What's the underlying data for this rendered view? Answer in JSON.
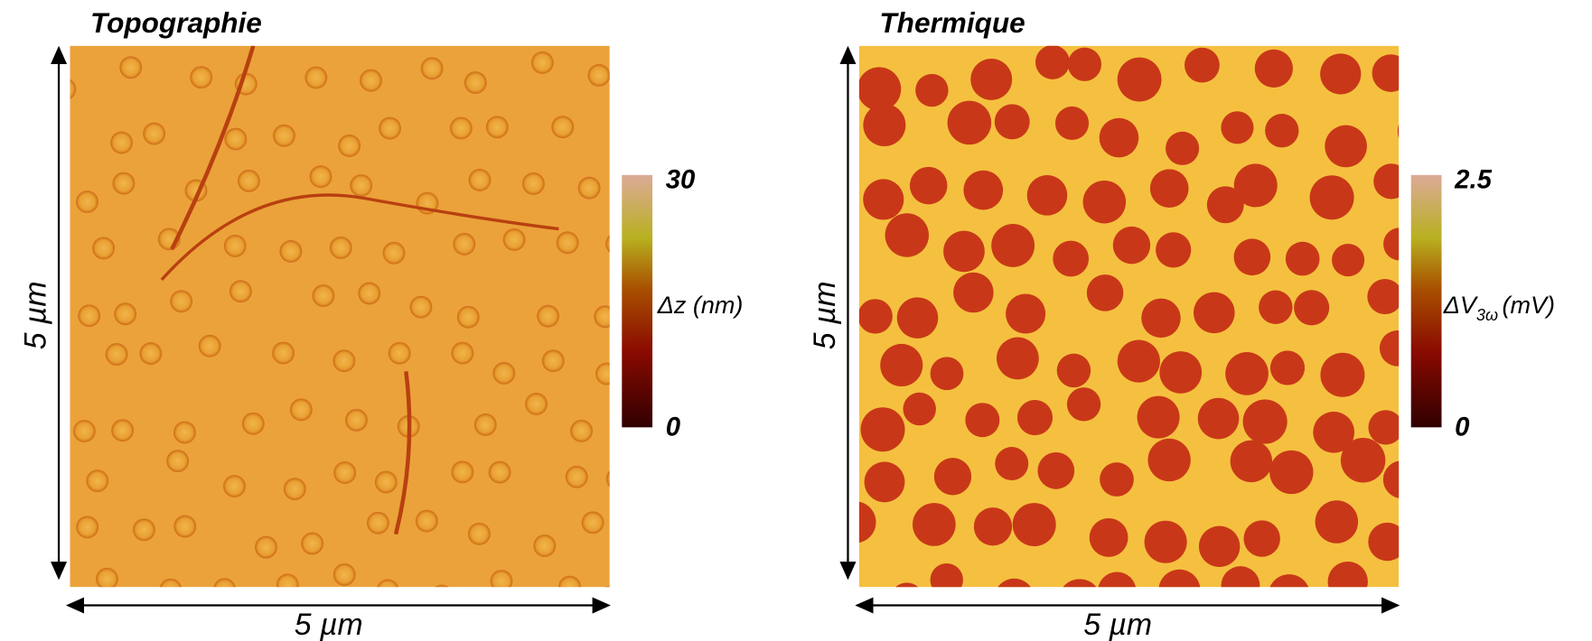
{
  "panels": [
    {
      "title": "Topographie",
      "x_label": "5 µm",
      "y_label": "5 µm",
      "colorbar": {
        "label": "Δz (nm)",
        "min": 0,
        "max": 30
      }
    },
    {
      "title": "Thermique",
      "x_label": "5 µm",
      "y_label": "5 µm",
      "colorbar": {
        "label": {
          "main": "ΔV",
          "sub": "3ω",
          "unit": "(mV)"
        },
        "min": 0,
        "max": 2.5
      }
    }
  ]
}
